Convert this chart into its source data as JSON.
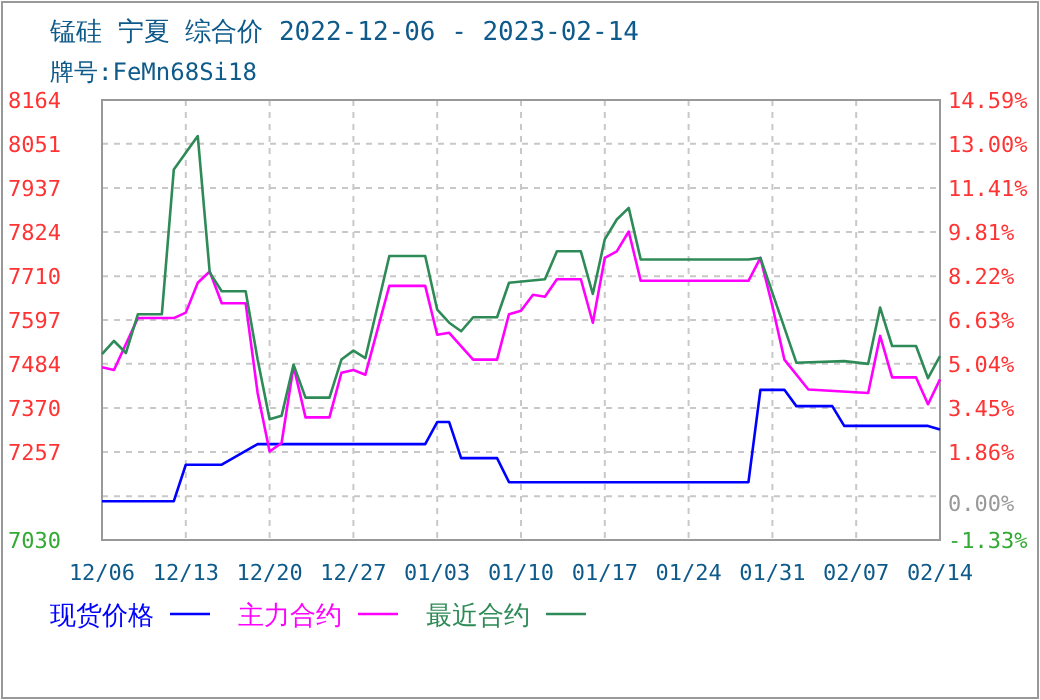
{
  "chart_data": {
    "type": "line",
    "title": "锰硅 宁夏 综合价 2022-12-06 - 2023-02-14",
    "subtitle": "牌号:FeMn68Si18",
    "series": [
      {
        "name": "现货价格",
        "color": "#0000ff",
        "x": [
          "2022-12-06",
          "2022-12-12",
          "2022-12-13",
          "2022-12-16",
          "2022-12-19",
          "2023-01-02",
          "2023-01-03",
          "2023-01-04",
          "2023-01-05",
          "2023-01-08",
          "2023-01-09",
          "2023-01-29",
          "2023-01-30",
          "2023-02-01",
          "2023-02-02",
          "2023-02-05",
          "2023-02-06",
          "2023-02-13",
          "2023-02-14"
        ],
        "values": [
          7130,
          7130,
          7224,
          7224,
          7277,
          7277,
          7334,
          7334,
          7241,
          7241,
          7179,
          7179,
          7417,
          7417,
          7375,
          7375,
          7324,
          7324,
          7315
        ]
      },
      {
        "name": "主力合约",
        "color": "#ff00ff",
        "x": [
          "2022-12-06",
          "2022-12-07",
          "2022-12-09",
          "2022-12-12",
          "2022-12-13",
          "2022-12-14",
          "2022-12-15",
          "2022-12-16",
          "2022-12-18",
          "2022-12-19",
          "2022-12-20",
          "2022-12-21",
          "2022-12-22",
          "2022-12-23",
          "2022-12-25",
          "2022-12-26",
          "2022-12-27",
          "2022-12-28",
          "2022-12-30",
          "2023-01-02",
          "2023-01-03",
          "2023-01-04",
          "2023-01-06",
          "2023-01-08",
          "2023-01-09",
          "2023-01-10",
          "2023-01-11",
          "2023-01-12",
          "2023-01-13",
          "2023-01-15",
          "2023-01-16",
          "2023-01-17",
          "2023-01-18",
          "2023-01-19",
          "2023-01-20",
          "2023-01-29",
          "2023-01-30",
          "2023-01-31",
          "2023-02-01",
          "2023-02-03",
          "2023-02-08",
          "2023-02-09",
          "2023-02-10",
          "2023-02-12",
          "2023-02-13",
          "2023-02-14"
        ],
        "values": [
          7475,
          7468,
          7602,
          7602,
          7616,
          7693,
          7722,
          7640,
          7640,
          7409,
          7258,
          7280,
          7478,
          7346,
          7346,
          7461,
          7468,
          7456,
          7685,
          7685,
          7559,
          7564,
          7495,
          7495,
          7612,
          7621,
          7662,
          7657,
          7702,
          7702,
          7590,
          7757,
          7774,
          7825,
          7698,
          7698,
          7757,
          7633,
          7495,
          7418,
          7409,
          7556,
          7449,
          7449,
          7380,
          7444
        ]
      },
      {
        "name": "最近合约",
        "color": "#2e8b57",
        "x": [
          "2022-12-06",
          "2022-12-07",
          "2022-12-08",
          "2022-12-09",
          "2022-12-11",
          "2022-12-12",
          "2022-12-13",
          "2022-12-14",
          "2022-12-15",
          "2022-12-16",
          "2022-12-18",
          "2022-12-19",
          "2022-12-20",
          "2022-12-21",
          "2022-12-22",
          "2022-12-23",
          "2022-12-25",
          "2022-12-26",
          "2022-12-27",
          "2022-12-28",
          "2022-12-30",
          "2023-01-02",
          "2023-01-03",
          "2023-01-04",
          "2023-01-05",
          "2023-01-06",
          "2023-01-08",
          "2023-01-09",
          "2023-01-12",
          "2023-01-13",
          "2023-01-15",
          "2023-01-16",
          "2023-01-17",
          "2023-01-18",
          "2023-01-19",
          "2023-01-20",
          "2023-01-29",
          "2023-01-30",
          "2023-02-02",
          "2023-02-06",
          "2023-02-08",
          "2023-02-09",
          "2023-02-10",
          "2023-02-12",
          "2023-02-13",
          "2023-02-14"
        ],
        "values": [
          7509,
          7543,
          7512,
          7612,
          7612,
          7985,
          8028,
          8071,
          7719,
          7671,
          7671,
          7495,
          7341,
          7350,
          7482,
          7397,
          7397,
          7495,
          7518,
          7499,
          7762,
          7762,
          7624,
          7590,
          7568,
          7604,
          7604,
          7693,
          7702,
          7774,
          7774,
          7664,
          7805,
          7856,
          7886,
          7753,
          7753,
          7757,
          7487,
          7491,
          7484,
          7629,
          7530,
          7530,
          7447,
          7504
        ]
      }
    ],
    "xlim": [
      "2022-12-06",
      "2023-02-14"
    ],
    "xticks": [
      {
        "value": "2022-12-06",
        "label": "12/06"
      },
      {
        "value": "2022-12-13",
        "label": "12/13"
      },
      {
        "value": "2022-12-20",
        "label": "12/20"
      },
      {
        "value": "2022-12-27",
        "label": "12/27"
      },
      {
        "value": "2023-01-03",
        "label": "01/03"
      },
      {
        "value": "2023-01-10",
        "label": "01/10"
      },
      {
        "value": "2023-01-17",
        "label": "01/17"
      },
      {
        "value": "2023-01-24",
        "label": "01/24"
      },
      {
        "value": "2023-01-31",
        "label": "01/31"
      },
      {
        "value": "2023-02-07",
        "label": "02/07"
      },
      {
        "value": "2023-02-14",
        "label": "02/14"
      }
    ],
    "ylim": [
      7030,
      8164
    ],
    "yticks": [
      8164,
      8051,
      7937,
      7824,
      7710,
      7597,
      7484,
      7370,
      7257,
      {
        "value": 7143,
        "label": null
      },
      7030
    ],
    "y2lim": [
      -1.33,
      14.59
    ],
    "y2ticks": [
      {
        "value": 14.59,
        "label": "14.59%"
      },
      {
        "value": 13.0,
        "label": "13.00%"
      },
      {
        "value": 11.41,
        "label": "11.41%"
      },
      {
        "value": 9.81,
        "label": "9.81%"
      },
      {
        "value": 8.22,
        "label": "8.22%"
      },
      {
        "value": 6.63,
        "label": "6.63%"
      },
      {
        "value": 5.04,
        "label": "5.04%"
      },
      {
        "value": 3.45,
        "label": "3.45%"
      },
      {
        "value": 1.86,
        "label": "1.86%"
      },
      {
        "value": 0,
        "label": "0.00%"
      },
      {
        "value": -1.33,
        "label": "-1.33%"
      }
    ],
    "grid": true,
    "legend": "bottom",
    "line_style": "solid",
    "marker": "none"
  }
}
